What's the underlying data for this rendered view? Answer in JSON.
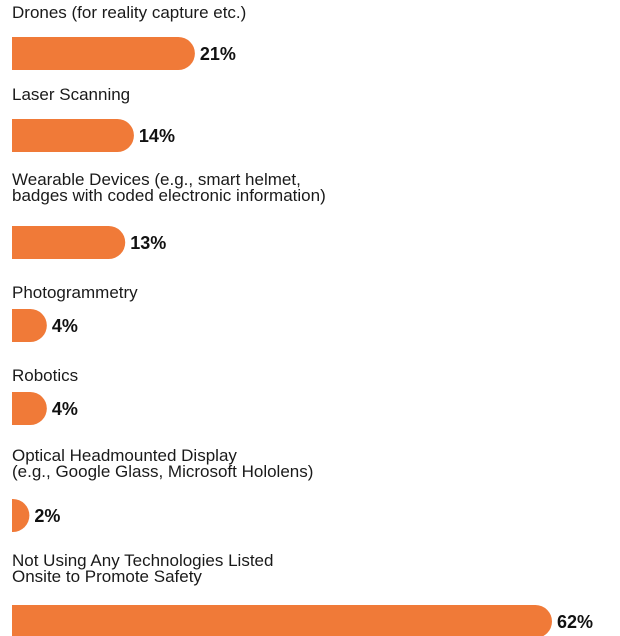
{
  "chart_data": {
    "type": "bar",
    "orientation": "horizontal",
    "categories": [
      [
        "Drones (for reality capture etc.)"
      ],
      [
        "Laser Scanning"
      ],
      [
        "Wearable Devices (e.g., smart helmet,",
        "badges with coded electronic information)"
      ],
      [
        "Photogrammetry"
      ],
      [
        "Robotics"
      ],
      [
        "Optical Headmounted Display",
        "(e.g., Google Glass, Microsoft Hololens)"
      ],
      [
        "Not Using Any Technologies Listed",
        "Onsite to Promote Safety"
      ]
    ],
    "values": [
      21,
      14,
      13,
      4,
      4,
      2,
      62
    ],
    "value_labels": [
      "21%",
      "14%",
      "13%",
      "4%",
      "4%",
      "2%",
      "62%"
    ],
    "xlim": [
      0,
      62
    ],
    "bar_color": "#f07a38",
    "grid": false,
    "title": "",
    "xlabel": "",
    "ylabel": ""
  }
}
